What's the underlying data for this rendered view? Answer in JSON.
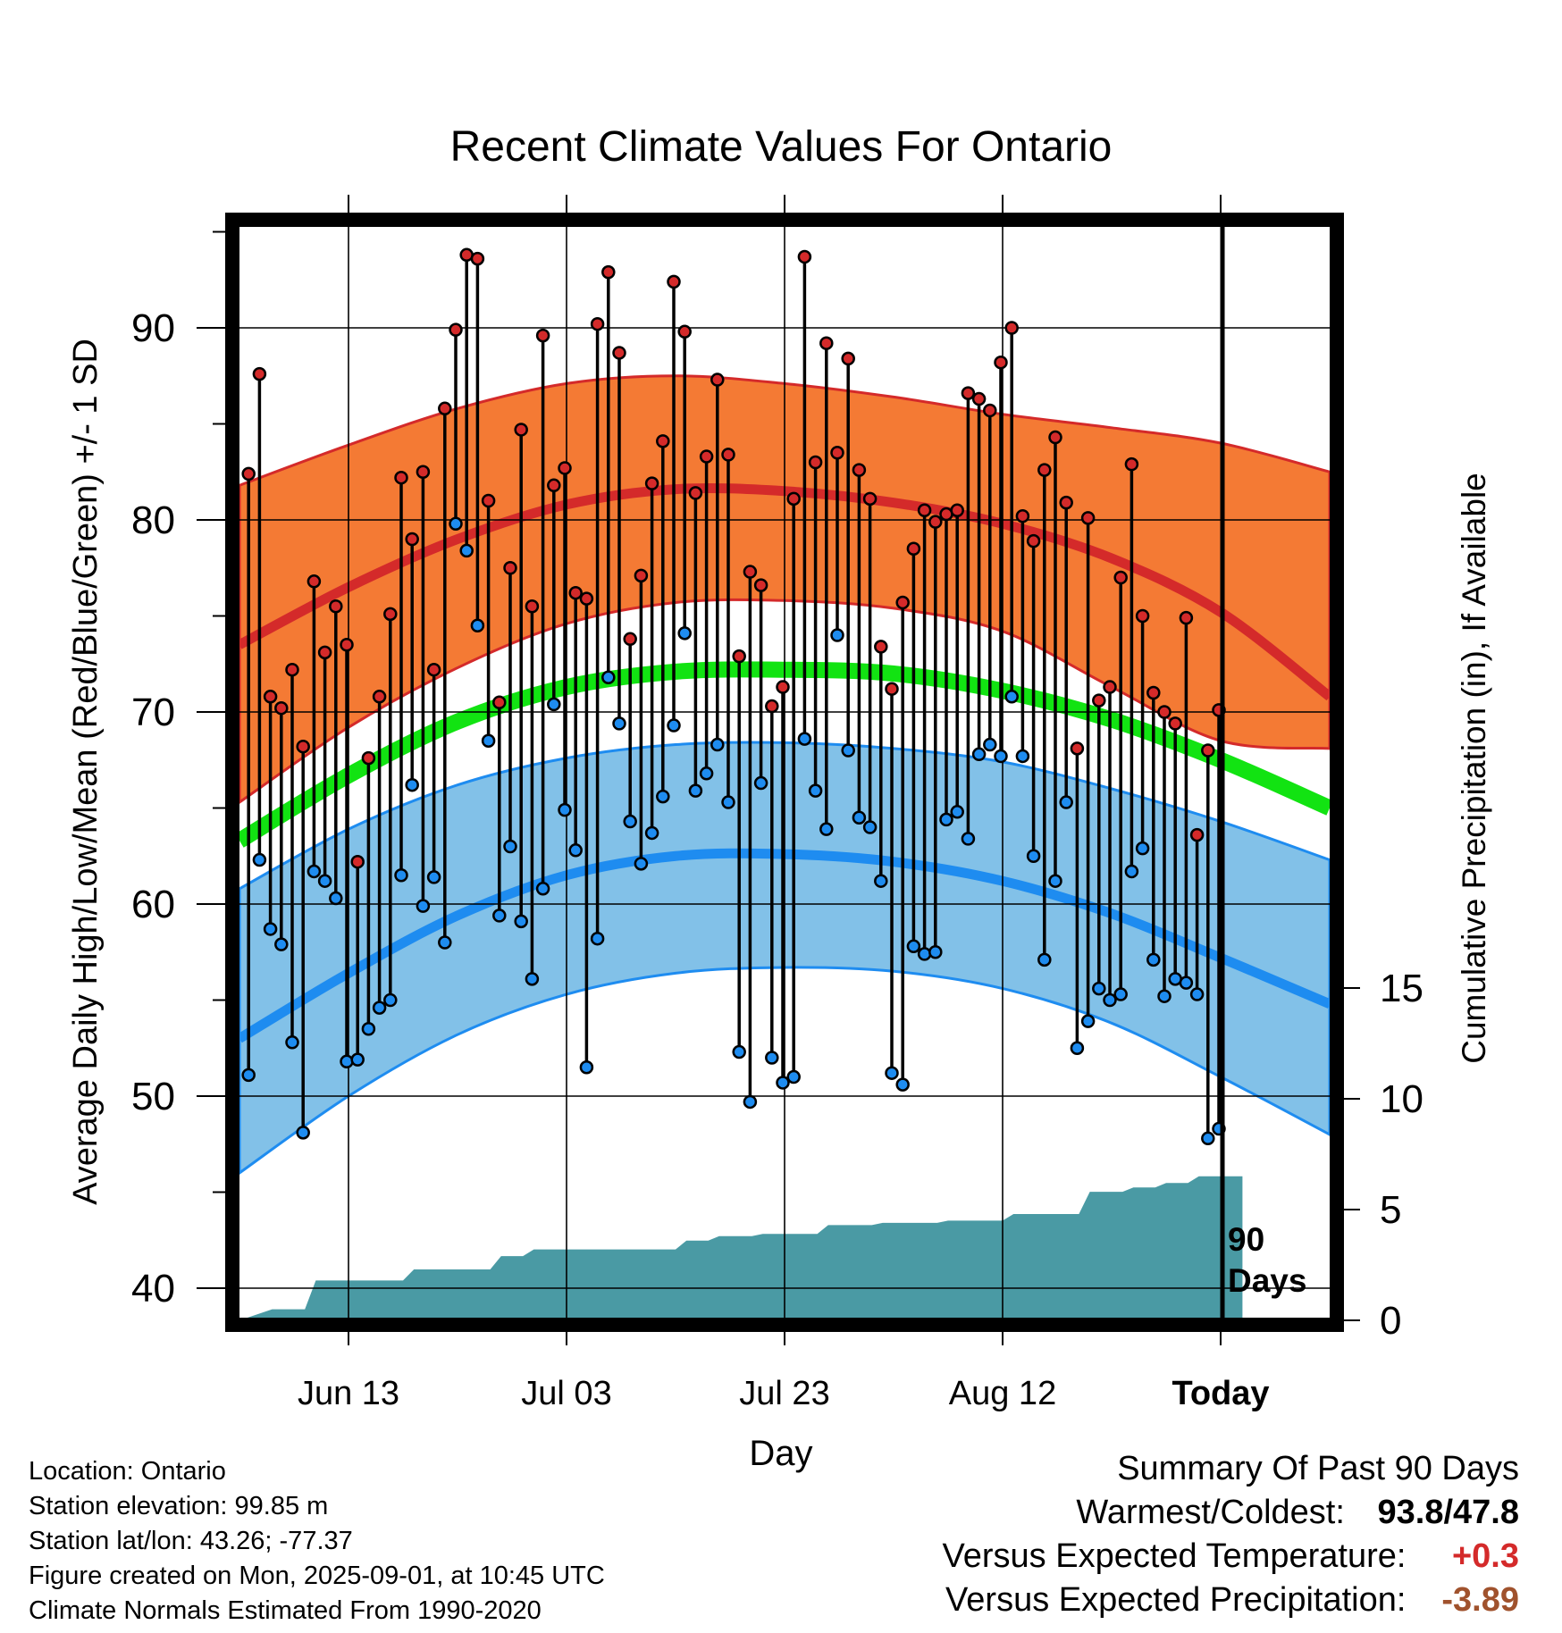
{
  "chart_data": {
    "type": "line",
    "title": "Recent Climate Values For Ontario",
    "xlabel": "Day",
    "ylabel": "Average Daily High/Low/Mean (Red/Blue/Green) +/- 1 SD",
    "y2label": "Cumulative Precipitation (in), If Available",
    "ylim": [
      38,
      98.5
    ],
    "y2lim": [
      0,
      30
    ],
    "yticks": [
      40,
      50,
      60,
      70,
      80,
      90
    ],
    "y2ticks": [
      0,
      5,
      10,
      15
    ],
    "xticks": [
      {
        "label": "Jun 13",
        "day": 10
      },
      {
        "label": "Jul 03",
        "day": 30
      },
      {
        "label": "Jul 23",
        "day": 50
      },
      {
        "label": "Aug 12",
        "day": 70
      },
      {
        "label": "Today",
        "day": 90
      }
    ],
    "today_label": "90\nDays",
    "grid": true,
    "colors": {
      "high_band": "#f47a34",
      "high_line": "#d42a2a",
      "low_band": "#82c1e8",
      "low_line": "#1e8cf0",
      "mean_line": "#12e312",
      "precip": "#4a9aa4",
      "high_point": "#d42a2a",
      "low_point": "#1e8cf0",
      "positive": "#d42a2a",
      "negative": "#a0522d"
    },
    "normal_curves": {
      "days": [
        0,
        10,
        20,
        30,
        40,
        50,
        60,
        70,
        80,
        90,
        100
      ],
      "high_mean": [
        73.5,
        76.5,
        79.0,
        80.8,
        81.6,
        81.5,
        80.9,
        79.8,
        78.0,
        75.2,
        70.8
      ],
      "high_plus_sd": [
        81.8,
        83.9,
        85.8,
        87.1,
        87.5,
        87.1,
        86.4,
        85.5,
        84.8,
        84.0,
        82.5
      ],
      "high_minus_sd": [
        65.3,
        69.2,
        72.3,
        74.6,
        75.7,
        75.8,
        75.4,
        74.2,
        71.3,
        68.5,
        68.1
      ],
      "low_mean": [
        53.0,
        56.4,
        59.4,
        61.5,
        62.5,
        62.6,
        62.2,
        61.2,
        59.5,
        57.2,
        54.8
      ],
      "low_plus_sd": [
        60.8,
        63.9,
        66.2,
        67.6,
        68.3,
        68.4,
        68.1,
        67.4,
        66.0,
        64.3,
        62.3
      ],
      "low_minus_sd": [
        46.0,
        50.0,
        53.2,
        55.3,
        56.4,
        56.7,
        56.5,
        55.6,
        53.8,
        51.0,
        48.0
      ],
      "mean": [
        63.3,
        66.7,
        69.5,
        71.3,
        72.1,
        72.2,
        72.0,
        71.1,
        69.6,
        67.5,
        65.0
      ]
    },
    "x": [
      1,
      2,
      3,
      4,
      5,
      6,
      7,
      8,
      9,
      10,
      11,
      12,
      13,
      14,
      15,
      16,
      17,
      18,
      19,
      20,
      21,
      22,
      23,
      24,
      25,
      26,
      27,
      28,
      29,
      30,
      31,
      32,
      33,
      34,
      35,
      36,
      37,
      38,
      39,
      40,
      41,
      42,
      43,
      44,
      45,
      46,
      47,
      48,
      49,
      50,
      51,
      52,
      53,
      54,
      55,
      56,
      57,
      58,
      59,
      60,
      61,
      62,
      63,
      64,
      65,
      66,
      67,
      68,
      69,
      70,
      71,
      72,
      73,
      74,
      75,
      76,
      77,
      78,
      79,
      80,
      81,
      82,
      83,
      84,
      85,
      86,
      87,
      88,
      89,
      90
    ],
    "series": [
      {
        "name": "High",
        "values": [
          82.4,
          87.6,
          70.8,
          70.2,
          72.2,
          68.2,
          76.8,
          73.1,
          75.5,
          73.5,
          62.2,
          67.6,
          70.8,
          75.1,
          82.2,
          79.0,
          82.5,
          72.2,
          85.8,
          89.9,
          93.8,
          93.6,
          81.0,
          70.5,
          77.5,
          84.7,
          75.5,
          89.6,
          81.8,
          82.7,
          76.2,
          75.9,
          90.2,
          92.9,
          88.7,
          73.8,
          77.1,
          81.9,
          84.1,
          92.4,
          89.8,
          81.4,
          83.3,
          87.3,
          83.4,
          72.9,
          77.3,
          76.6,
          70.3,
          71.3,
          81.1,
          93.7,
          83.0,
          89.2,
          83.5,
          88.4,
          82.6,
          81.1,
          73.4,
          71.2,
          75.7,
          78.5,
          80.5,
          79.9,
          80.3,
          80.5,
          86.6,
          86.3,
          85.7,
          88.2,
          90.0,
          80.2,
          78.9,
          82.6,
          84.3,
          80.9,
          68.1,
          80.1,
          70.6,
          71.3,
          77.0,
          82.9,
          75.0,
          71.0,
          70.0,
          69.4,
          74.9,
          63.6,
          68.0,
          70.1
        ]
      },
      {
        "name": "Low",
        "values": [
          51.1,
          62.3,
          58.7,
          57.9,
          52.8,
          48.1,
          61.7,
          61.2,
          60.3,
          51.8,
          51.9,
          53.5,
          54.6,
          55.0,
          61.5,
          66.2,
          59.9,
          61.4,
          58.0,
          79.8,
          78.4,
          74.5,
          68.5,
          59.4,
          63.0,
          59.1,
          56.1,
          60.8,
          70.4,
          64.9,
          62.8,
          51.5,
          58.2,
          71.8,
          69.4,
          64.3,
          62.1,
          63.7,
          65.6,
          69.3,
          74.1,
          65.9,
          66.8,
          68.3,
          65.3,
          52.3,
          49.7,
          66.3,
          52.0,
          50.7,
          51.0,
          68.6,
          65.9,
          63.9,
          74.0,
          68.0,
          64.5,
          64.0,
          61.2,
          51.2,
          50.6,
          57.8,
          57.4,
          57.5,
          64.4,
          64.8,
          63.4,
          67.8,
          68.3,
          67.7,
          70.8,
          67.7,
          62.5,
          57.1,
          61.2,
          65.3,
          52.5,
          53.9,
          55.6,
          55.0,
          55.3,
          61.7,
          62.9,
          57.1,
          55.2,
          56.1,
          55.9,
          55.3,
          47.8,
          48.3
        ]
      }
    ],
    "precip_cumulative": {
      "days": [
        0,
        3,
        6,
        7,
        8,
        15,
        16,
        23,
        24,
        26,
        27,
        40,
        41,
        43,
        44,
        47,
        48,
        53,
        54,
        58,
        59,
        64,
        65,
        70,
        71,
        77,
        78,
        81,
        82,
        84,
        85,
        87,
        88,
        92
      ],
      "values": [
        0,
        0.5,
        0.5,
        1.8,
        1.8,
        1.8,
        2.3,
        2.3,
        2.9,
        2.9,
        3.2,
        3.2,
        3.6,
        3.6,
        3.8,
        3.8,
        3.9,
        3.9,
        4.3,
        4.3,
        4.4,
        4.4,
        4.5,
        4.5,
        4.8,
        4.8,
        5.8,
        5.8,
        6.0,
        6.0,
        6.2,
        6.2,
        6.5,
        6.5
      ]
    }
  },
  "info": {
    "location": "Location: Ontario",
    "elevation": "Station elevation: 99.85 m",
    "latlon": "Station lat/lon: 43.26; -77.37",
    "created": "Figure created on Mon, 2025-09-01, at 10:45 UTC",
    "normals": "Climate Normals Estimated From 1990-2020"
  },
  "summary": {
    "title": "Summary Of Past 90 Days",
    "warmest_label": "Warmest/Coldest:",
    "warmest_value": "93.8",
    "slash": "/",
    "coldest_value": "47.8",
    "temp_label": "Versus Expected Temperature:",
    "temp_value": "+0.3",
    "precip_label": "Versus Expected Precipitation:",
    "precip_value": "-3.89"
  }
}
